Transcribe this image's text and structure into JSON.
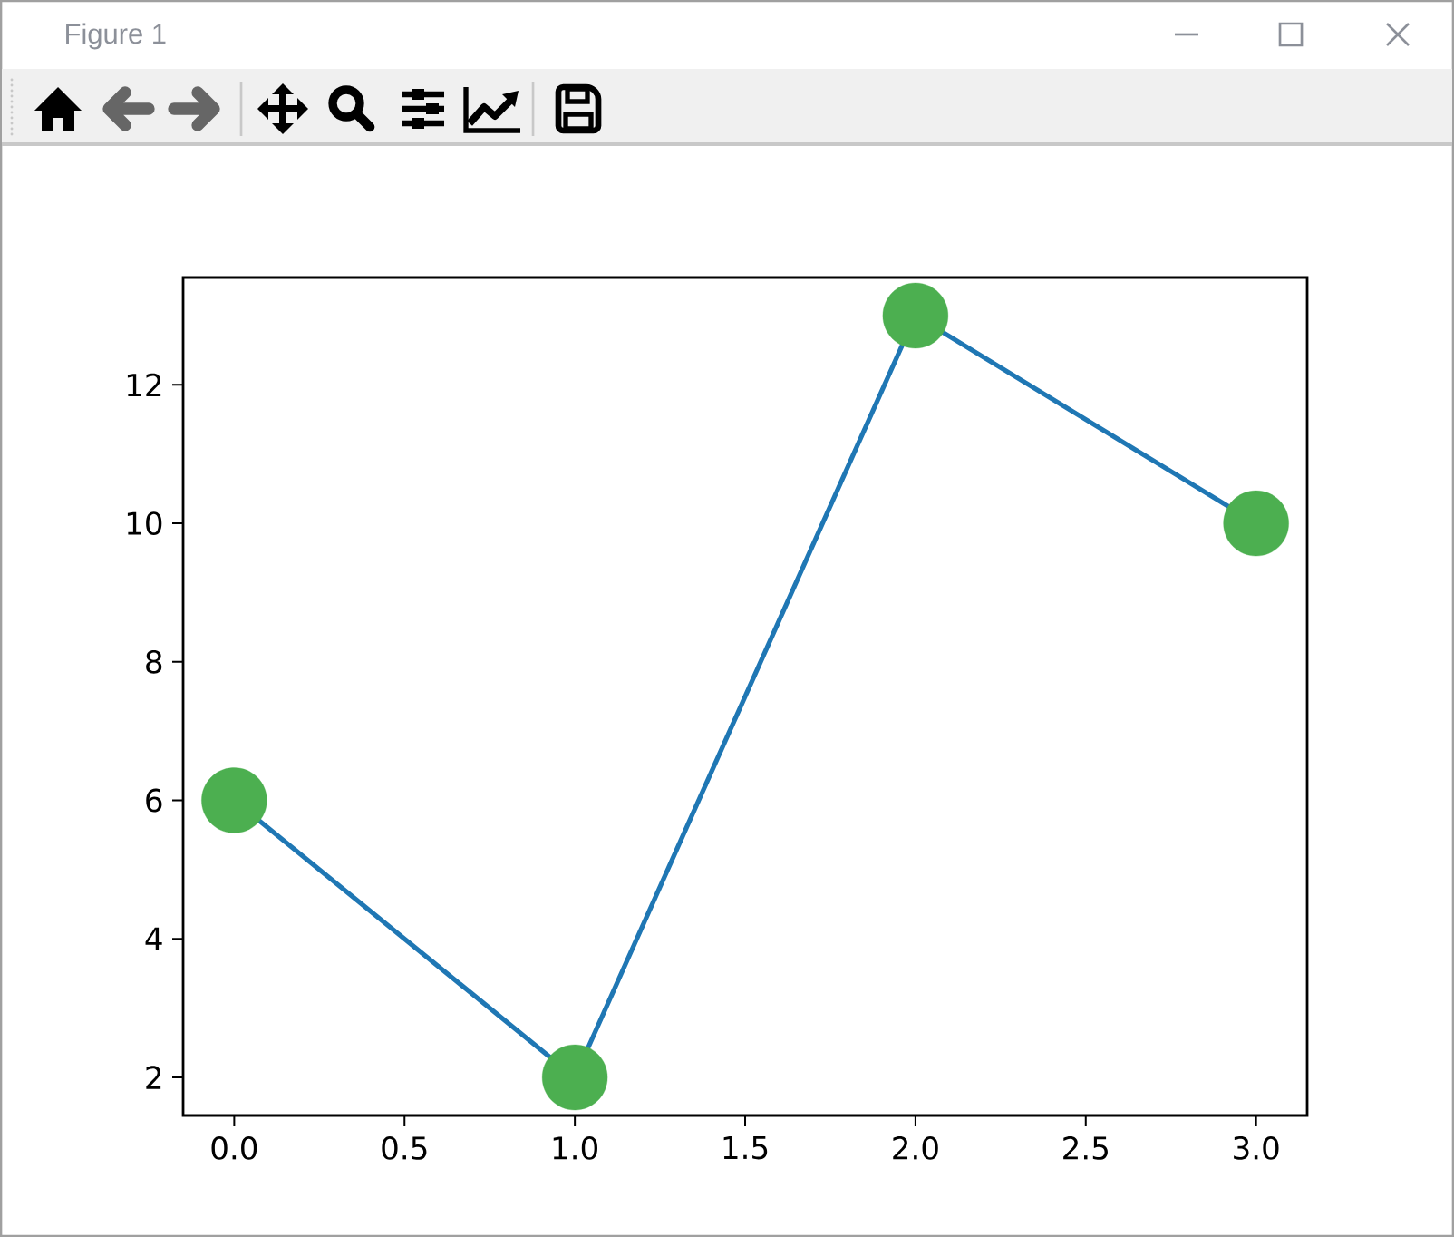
{
  "chart_data": {
    "type": "line",
    "annotations": [
      "Figure 1"
    ],
    "x": [
      0,
      1,
      2,
      3
    ],
    "series": [
      {
        "color": "#1f77b4",
        "marker": "none",
        "values": [
          6,
          2,
          13,
          10
        ]
      },
      {
        "type": "scatter",
        "color": "#4caf50",
        "marker": "circle",
        "values": [
          6,
          2,
          13,
          10
        ]
      }
    ],
    "xlim": [
      -0.15,
      3.15
    ],
    "ylim": [
      1.45,
      13.55
    ],
    "xticks": [
      {
        "value": 0,
        "label": "0.0"
      },
      0.5,
      {
        "value": 1,
        "label": "1.0"
      },
      1.5,
      {
        "value": 2,
        "label": "2.0"
      },
      2.5,
      {
        "value": 3,
        "label": "3.0"
      }
    ],
    "yticks": [
      2,
      4,
      6,
      8,
      10,
      12
    ]
  }
}
